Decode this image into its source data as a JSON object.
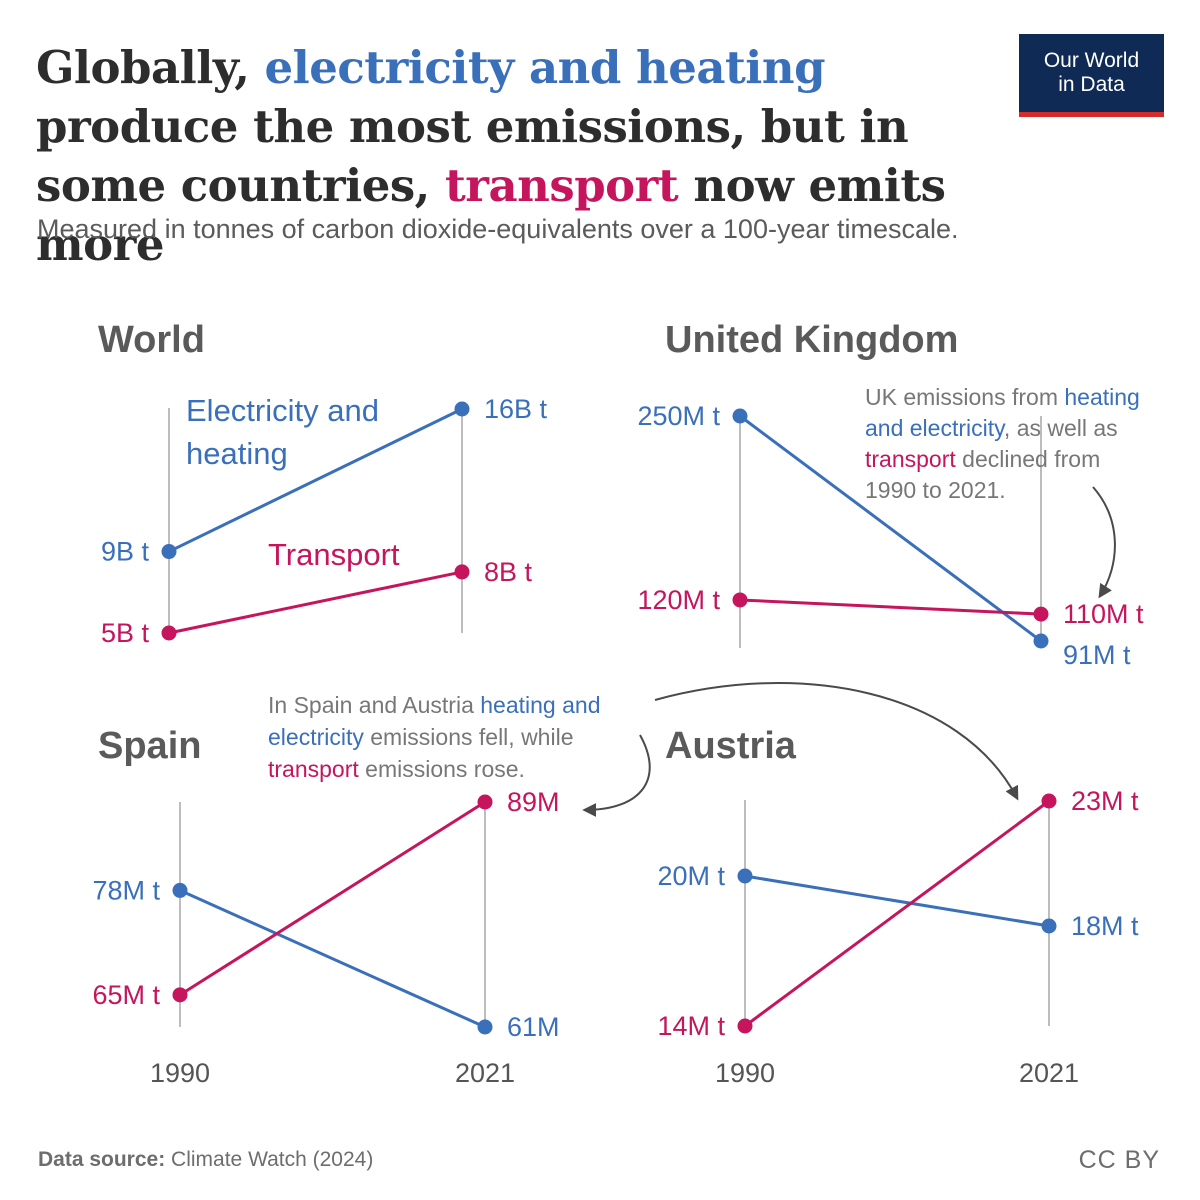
{
  "title": {
    "part1": "Globally, ",
    "highlight1": "electricity and heating",
    "part2": " produce the most emissions, but in some countries, ",
    "highlight2": "transport",
    "part3": " now emits more"
  },
  "subtitle": "Measured in tonnes of carbon dioxide-equivalents over a 100-year timescale.",
  "logo": {
    "line1": "Our World",
    "line2": "in Data"
  },
  "footer": {
    "source_label": "Data source:",
    "source_text": " Climate Watch (2024)",
    "license": "CC BY"
  },
  "colors": {
    "electricity": "#3a6fba",
    "transport": "#c5155d",
    "axis": "#bdbdbd",
    "annotation": "#777777"
  },
  "chart_data": [
    {
      "type": "line",
      "title": "World",
      "x": [
        "1990",
        "2021"
      ],
      "series": [
        {
          "name": "Electricity and heating",
          "values": [
            9,
            16
          ],
          "labels": [
            "9B t",
            "16B t"
          ]
        },
        {
          "name": "Transport",
          "values": [
            5,
            8
          ],
          "labels": [
            "5B t",
            "8B t"
          ]
        }
      ],
      "unit": "billion tonnes"
    },
    {
      "type": "line",
      "title": "United Kingdom",
      "x": [
        "1990",
        "2021"
      ],
      "series": [
        {
          "values": [
            250,
            91
          ],
          "labels": [
            "250M t",
            "91M t"
          ]
        },
        {
          "values": [
            120,
            110
          ],
          "labels": [
            "120M t",
            "110M t"
          ]
        }
      ],
      "unit": "million tonnes",
      "annotation": [
        [
          {
            "t": "UK emissions from "
          },
          {
            "t": "heating",
            "c": "blue"
          }
        ],
        [
          {
            "t": "and electricity",
            "c": "blue"
          },
          {
            "t": ", as well as"
          }
        ],
        [
          {
            "t": "transport",
            "c": "pink"
          },
          {
            "t": " declined from"
          }
        ],
        [
          {
            "t": "1990 to 2021."
          }
        ]
      ]
    },
    {
      "type": "line",
      "title": "Spain",
      "x": [
        "1990",
        "2021"
      ],
      "series": [
        {
          "values": [
            78,
            61
          ],
          "labels": [
            "78M t",
            "61M"
          ]
        },
        {
          "values": [
            65,
            89
          ],
          "labels": [
            "65M t",
            "89M"
          ]
        }
      ],
      "unit": "million tonnes"
    },
    {
      "type": "line",
      "title": "Austria",
      "x": [
        "1990",
        "2021"
      ],
      "series": [
        {
          "values": [
            20,
            18
          ],
          "labels": [
            "20M t",
            "18M t"
          ]
        },
        {
          "values": [
            14,
            23
          ],
          "labels": [
            "14M t",
            "23M t"
          ]
        }
      ],
      "unit": "million tonnes"
    }
  ],
  "shared_annotation": [
    [
      {
        "t": "In Spain and Austria "
      },
      {
        "t": "heating and",
        "c": "blue"
      }
    ],
    [
      {
        "t": "electricity",
        "c": "blue"
      },
      {
        "t": " emissions fell, while"
      }
    ],
    [
      {
        "t": "transport",
        "c": "pink"
      },
      {
        "t": " emissions rose."
      }
    ]
  ]
}
